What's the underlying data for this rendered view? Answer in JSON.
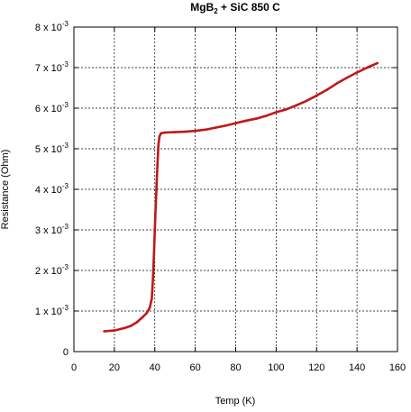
{
  "chart_data": {
    "type": "line",
    "title_main": "MgB",
    "title_sub": "2",
    "title_rest": " + SiC 850 C",
    "xlabel": "Temp (K)",
    "ylabel": "Resistance (Ohm)",
    "xlim": [
      0,
      160
    ],
    "ylim": [
      0,
      0.008
    ],
    "xticks": [
      0,
      20,
      40,
      60,
      80,
      100,
      120,
      140,
      160
    ],
    "xtick_labels": [
      "0",
      "20",
      "40",
      "60",
      "80",
      "100",
      "120",
      "140",
      "160"
    ],
    "yticks": [
      0,
      0.001,
      0.002,
      0.003,
      0.004,
      0.005,
      0.006,
      0.007,
      0.008
    ],
    "ytick_mantissas": [
      "0",
      "1 x 10",
      "2 x 10",
      "3 x 10",
      "4 x 10",
      "5 x 10",
      "6 x 10",
      "7 x 10",
      "8 x 10"
    ],
    "ytick_exponents": [
      "",
      "-3",
      "-3",
      "-3",
      "-3",
      "-3",
      "-3",
      "-3",
      "-3"
    ],
    "grid": "dashed",
    "line_color": "#c01818",
    "series": [
      {
        "x": [
          15,
          20,
          25,
          28,
          31,
          34,
          36,
          37.5,
          38.5,
          39.2,
          39.8,
          40.3,
          40.8,
          41.3,
          41.8,
          42.3,
          43,
          45,
          50,
          55,
          60,
          65,
          70,
          75,
          80,
          85,
          90,
          95,
          100,
          105,
          110,
          115,
          120,
          125,
          130,
          135,
          140,
          145,
          150
        ],
        "y": [
          0.0005,
          0.00052,
          0.00058,
          0.00063,
          0.00072,
          0.00085,
          0.00095,
          0.00108,
          0.0013,
          0.0019,
          0.0027,
          0.0034,
          0.004,
          0.0046,
          0.0051,
          0.0053,
          0.00538,
          0.0054,
          0.00541,
          0.00542,
          0.00544,
          0.00547,
          0.00552,
          0.00557,
          0.00563,
          0.00569,
          0.00574,
          0.00581,
          0.0059,
          0.00597,
          0.00607,
          0.00618,
          0.00631,
          0.00645,
          0.00661,
          0.00675,
          0.00688,
          0.007,
          0.00711
        ]
      }
    ]
  }
}
